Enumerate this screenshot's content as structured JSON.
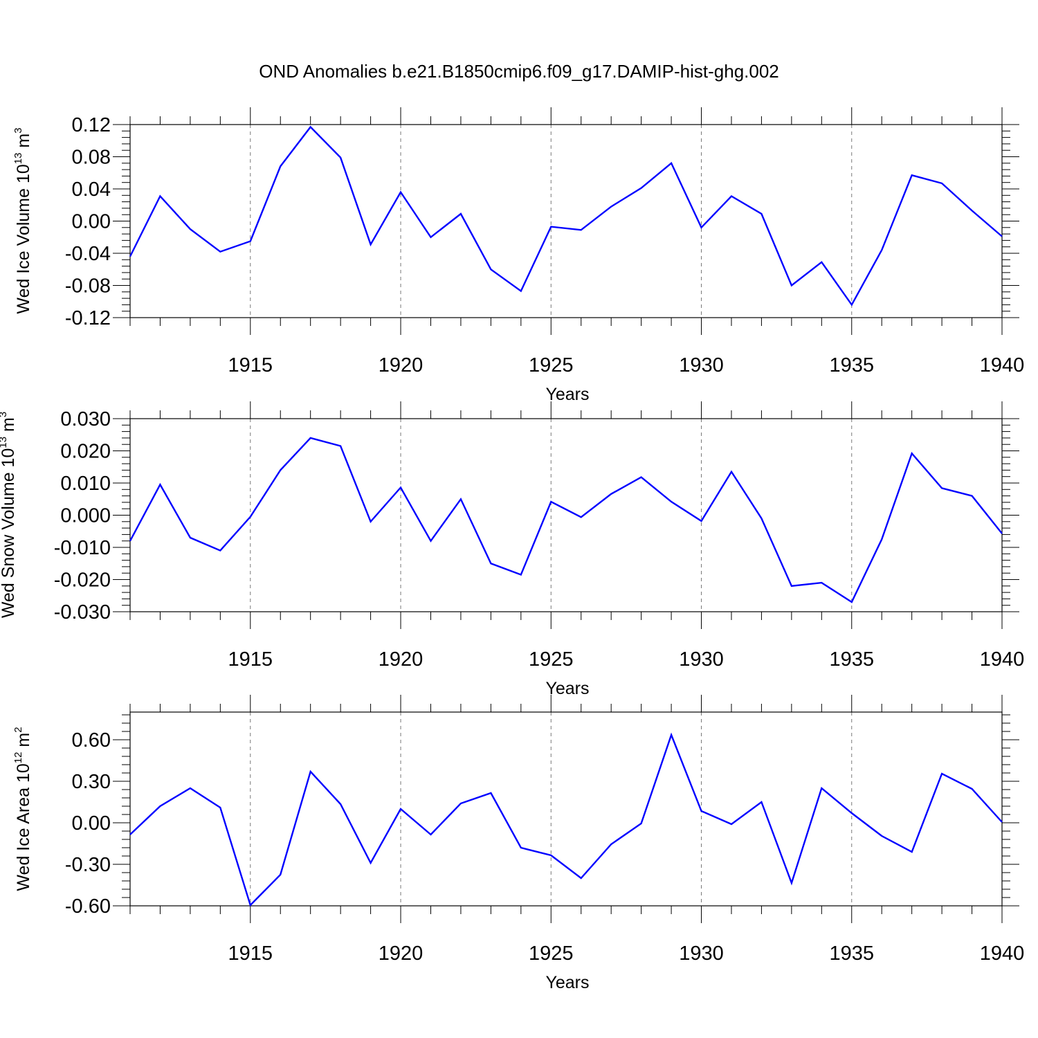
{
  "title": "OND Anomalies b.e21.B1850cmip6.f09_g17.DAMIP-hist-ghg.002",
  "chart_data": [
    {
      "type": "line",
      "xlabel": "Years",
      "ylabel": {
        "base": "Wed Ice Volume 10",
        "exp": "13",
        "unit": " m",
        "unit_exp": "3"
      },
      "x": [
        1911,
        1912,
        1913,
        1914,
        1915,
        1916,
        1917,
        1918,
        1919,
        1920,
        1921,
        1922,
        1923,
        1924,
        1925,
        1926,
        1927,
        1928,
        1929,
        1930,
        1931,
        1932,
        1933,
        1934,
        1935,
        1936,
        1937,
        1938,
        1939,
        1940
      ],
      "series": [
        {
          "color": "#0000ff",
          "values": [
            -0.044,
            0.031,
            -0.01,
            -0.038,
            -0.025,
            0.068,
            0.117,
            0.079,
            -0.029,
            0.036,
            -0.02,
            0.009,
            -0.06,
            -0.087,
            -0.007,
            -0.011,
            0.018,
            0.041,
            0.072,
            -0.008,
            0.031,
            0.009,
            -0.08,
            -0.051,
            -0.104,
            -0.036,
            0.057,
            0.047,
            0.013,
            -0.019
          ]
        }
      ],
      "xlim": [
        1911,
        1940
      ],
      "ylim": [
        -0.12,
        0.12
      ],
      "yticks": [
        -0.12,
        -0.08,
        -0.04,
        0.0,
        0.04,
        0.08,
        0.12
      ],
      "ytick_labels": [
        "-0.12",
        "-0.08",
        "-0.04",
        "0.00",
        "0.04",
        "0.08",
        "0.12"
      ],
      "xticks": [
        1915,
        1920,
        1925,
        1930,
        1935,
        1940
      ],
      "xtick_labels": [
        "1915",
        "1920",
        "1925",
        "1930",
        "1935",
        "1940"
      ],
      "grid": "vertical dashed at major x ticks"
    },
    {
      "type": "line",
      "xlabel": "Years",
      "ylabel": {
        "base": "Wed Snow Volume 10",
        "exp": "13",
        "unit": " m",
        "unit_exp": "3"
      },
      "x": [
        1911,
        1912,
        1913,
        1914,
        1915,
        1916,
        1917,
        1918,
        1919,
        1920,
        1921,
        1922,
        1923,
        1924,
        1925,
        1926,
        1927,
        1928,
        1929,
        1930,
        1931,
        1932,
        1933,
        1934,
        1935,
        1936,
        1937,
        1938,
        1939,
        1940
      ],
      "series": [
        {
          "color": "#0000ff",
          "values": [
            -0.008,
            0.0095,
            -0.007,
            -0.011,
            -0.0005,
            0.014,
            0.024,
            0.0215,
            -0.002,
            0.0086,
            -0.008,
            0.005,
            -0.015,
            -0.0185,
            0.0042,
            -0.0006,
            0.0066,
            0.0118,
            0.0042,
            -0.0018,
            0.0135,
            -0.001,
            -0.022,
            -0.021,
            -0.027,
            -0.0075,
            0.0192,
            0.0084,
            0.006,
            -0.0057
          ]
        }
      ],
      "xlim": [
        1911,
        1940
      ],
      "ylim": [
        -0.03,
        0.03
      ],
      "yticks": [
        -0.03,
        -0.02,
        -0.01,
        0.0,
        0.01,
        0.02,
        0.03
      ],
      "ytick_labels": [
        "-0.030",
        "-0.020",
        "-0.010",
        "0.000",
        "0.010",
        "0.020",
        "0.030"
      ],
      "xticks": [
        1915,
        1920,
        1925,
        1930,
        1935,
        1940
      ],
      "xtick_labels": [
        "1915",
        "1920",
        "1925",
        "1930",
        "1935",
        "1940"
      ],
      "grid": "vertical dashed at major x ticks"
    },
    {
      "type": "line",
      "xlabel": "Years",
      "ylabel": {
        "base": "Wed Ice Area 10",
        "exp": "12",
        "unit": " m",
        "unit_exp": "2"
      },
      "x": [
        1911,
        1912,
        1913,
        1914,
        1915,
        1916,
        1917,
        1918,
        1919,
        1920,
        1921,
        1922,
        1923,
        1924,
        1925,
        1926,
        1927,
        1928,
        1929,
        1930,
        1931,
        1932,
        1933,
        1934,
        1935,
        1936,
        1937,
        1938,
        1939,
        1940
      ],
      "series": [
        {
          "color": "#0000ff",
          "values": [
            -0.085,
            0.12,
            0.25,
            0.11,
            -0.595,
            -0.375,
            0.37,
            0.135,
            -0.29,
            0.1,
            -0.085,
            0.14,
            0.215,
            -0.18,
            -0.235,
            -0.4,
            -0.155,
            -0.005,
            0.635,
            0.085,
            -0.01,
            0.15,
            -0.435,
            0.25,
            0.07,
            -0.095,
            -0.21,
            0.355,
            0.245,
            0.005
          ]
        }
      ],
      "xlim": [
        1911,
        1940
      ],
      "ylim": [
        -0.6,
        0.8
      ],
      "yticks": [
        -0.6,
        -0.3,
        0.0,
        0.3,
        0.6
      ],
      "ytick_labels": [
        "-0.60",
        "-0.30",
        "0.00",
        "0.30",
        "0.60"
      ],
      "xticks": [
        1915,
        1920,
        1925,
        1930,
        1935,
        1940
      ],
      "xtick_labels": [
        "1915",
        "1920",
        "1925",
        "1930",
        "1935",
        "1940"
      ],
      "grid": "vertical dashed at major x ticks"
    }
  ]
}
